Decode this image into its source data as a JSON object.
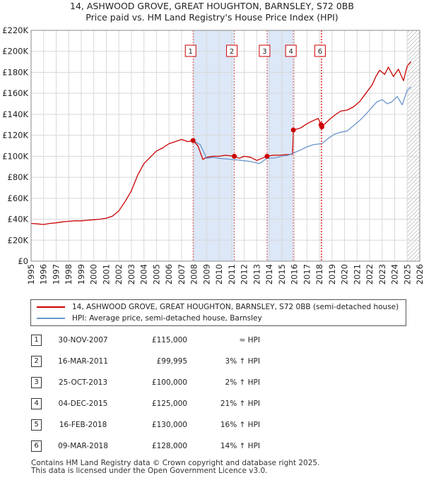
{
  "header": {
    "title_line1": "14, ASHWOOD GROVE, GREAT HOUGHTON, BARNSLEY, S72 0BB",
    "title_line2": "Price paid vs. HM Land Registry's House Price Index (HPI)"
  },
  "colors": {
    "property": "#cc0000",
    "hpi": "#6b95cc",
    "highlight": "#dce7f7",
    "marker_line": "#e05050",
    "grid": "#d8d8d8",
    "hatch": "#999999"
  },
  "legend": {
    "property_label": "14, ASHWOOD GROVE, GREAT HOUGHTON, BARNSLEY, S72 0BB (semi-detached house)",
    "hpi_label": "HPI: Average price, semi-detached house, Barnsley"
  },
  "chart_data": {
    "type": "line",
    "xlim": [
      1995,
      2026
    ],
    "ylim": [
      0,
      220000
    ],
    "x_ticks": [
      "1995",
      "1996",
      "1997",
      "1998",
      "1999",
      "2000",
      "2001",
      "2002",
      "2003",
      "2004",
      "2005",
      "2006",
      "2007",
      "2008",
      "2009",
      "2010",
      "2011",
      "2012",
      "2013",
      "2014",
      "2015",
      "2016",
      "2017",
      "2018",
      "2019",
      "2020",
      "2021",
      "2022",
      "2023",
      "2024",
      "2025",
      "2026"
    ],
    "y_ticks": [
      {
        "value": 0,
        "label": "£0"
      },
      {
        "value": 20000,
        "label": "£20K"
      },
      {
        "value": 40000,
        "label": "£40K"
      },
      {
        "value": 60000,
        "label": "£60K"
      },
      {
        "value": 80000,
        "label": "£80K"
      },
      {
        "value": 100000,
        "label": "£100K"
      },
      {
        "value": 120000,
        "label": "£120K"
      },
      {
        "value": 140000,
        "label": "£140K"
      },
      {
        "value": 160000,
        "label": "£160K"
      },
      {
        "value": 180000,
        "label": "£180K"
      },
      {
        "value": 200000,
        "label": "£200K"
      },
      {
        "value": 220000,
        "label": "£220K"
      }
    ],
    "grid": true,
    "forecast_hatch_from": 2025.0,
    "highlight_ranges": [
      [
        2007.92,
        2011.21
      ],
      [
        2013.82,
        2015.92
      ]
    ],
    "series": [
      {
        "name": "14, ASHWOOD GROVE, GREAT HOUGHTON, BARNSLEY, S72 0BB (semi-detached house)",
        "color": "#cc0000",
        "x": [
          1995.0,
          1995.5,
          1996.0,
          1996.5,
          1997.0,
          1997.5,
          1998.0,
          1998.5,
          1999.0,
          1999.5,
          2000.0,
          2000.5,
          2001.0,
          2001.5,
          2002.0,
          2002.5,
          2003.0,
          2003.5,
          2004.0,
          2004.5,
          2005.0,
          2005.5,
          2006.0,
          2006.5,
          2007.0,
          2007.5,
          2007.92,
          2008.3,
          2008.7,
          2009.0,
          2009.5,
          2010.0,
          2010.5,
          2011.21,
          2011.6,
          2012.0,
          2012.5,
          2013.0,
          2013.4,
          2013.82,
          2014.3,
          2014.8,
          2015.3,
          2015.85,
          2015.92,
          2016.5,
          2017.0,
          2017.5,
          2017.9,
          2018.13,
          2018.19,
          2018.7,
          2019.2,
          2019.7,
          2020.2,
          2020.7,
          2021.2,
          2021.7,
          2022.2,
          2022.5,
          2022.8,
          2023.2,
          2023.5,
          2023.9,
          2024.3,
          2024.7,
          2025.0,
          2025.3
        ],
        "values": [
          36000,
          35500,
          35000,
          36000,
          36500,
          37500,
          38000,
          38500,
          38500,
          39000,
          39500,
          40000,
          41000,
          43000,
          48000,
          57000,
          67000,
          82000,
          93000,
          99000,
          105000,
          108000,
          112000,
          114000,
          116000,
          114000,
          115000,
          110000,
          97000,
          99000,
          100000,
          100000,
          101000,
          99995,
          98000,
          100000,
          99000,
          96000,
          98000,
          100000,
          101000,
          101000,
          101500,
          102000,
          125000,
          127000,
          131000,
          134000,
          136000,
          130000,
          128000,
          134000,
          139000,
          143000,
          144000,
          147000,
          152000,
          160000,
          168000,
          176000,
          182000,
          178000,
          185000,
          176000,
          183000,
          172000,
          186000,
          190000
        ]
      },
      {
        "name": "HPI: Average price, semi-detached house, Barnsley",
        "color": "#6b95cc",
        "x": [
          2007.92,
          2008.5,
          2009.0,
          2009.5,
          2010.0,
          2010.5,
          2011.21,
          2011.8,
          2012.5,
          2013.2,
          2013.82,
          2014.5,
          2015.0,
          2015.5,
          2015.92,
          2016.5,
          2017.0,
          2017.5,
          2018.13,
          2018.19,
          2018.7,
          2019.2,
          2019.7,
          2020.2,
          2020.7,
          2021.2,
          2021.7,
          2022.2,
          2022.6,
          2023.0,
          2023.4,
          2023.8,
          2024.2,
          2024.6,
          2025.0,
          2025.3
        ],
        "values": [
          115000,
          111000,
          98000,
          99000,
          98000,
          97500,
          96800,
          96000,
          95000,
          93000,
          98000,
          98500,
          100000,
          101000,
          103000,
          106000,
          109000,
          111000,
          112000,
          112000,
          117000,
          121000,
          123000,
          124000,
          129000,
          134000,
          140000,
          147000,
          152000,
          154000,
          150000,
          152000,
          157000,
          149000,
          163000,
          166000
        ]
      }
    ],
    "sale_markers": [
      {
        "label": "1",
        "x": 2007.92,
        "value": 115000
      },
      {
        "label": "2",
        "x": 2011.21,
        "value": 99995
      },
      {
        "label": "3",
        "x": 2013.82,
        "value": 100000
      },
      {
        "label": "4",
        "x": 2015.92,
        "value": 125000
      },
      {
        "label": "5",
        "x": 2018.13,
        "value": 130000
      },
      {
        "label": "6",
        "x": 2018.19,
        "value": 128000
      }
    ]
  },
  "sales": [
    {
      "num": "1",
      "date": "30-NOV-2007",
      "price": "£115,000",
      "hpi": "≈ HPI"
    },
    {
      "num": "2",
      "date": "16-MAR-2011",
      "price": "£99,995",
      "hpi": "3% ↑ HPI"
    },
    {
      "num": "3",
      "date": "25-OCT-2013",
      "price": "£100,000",
      "hpi": "2% ↑ HPI"
    },
    {
      "num": "4",
      "date": "04-DEC-2015",
      "price": "£125,000",
      "hpi": "21% ↑ HPI"
    },
    {
      "num": "5",
      "date": "16-FEB-2018",
      "price": "£130,000",
      "hpi": "16% ↑ HPI"
    },
    {
      "num": "6",
      "date": "09-MAR-2018",
      "price": "£128,000",
      "hpi": "14% ↑ HPI"
    }
  ],
  "footer": {
    "line1": "Contains HM Land Registry data © Crown copyright and database right 2025.",
    "line2": "This data is licensed under the Open Government Licence v3.0."
  }
}
